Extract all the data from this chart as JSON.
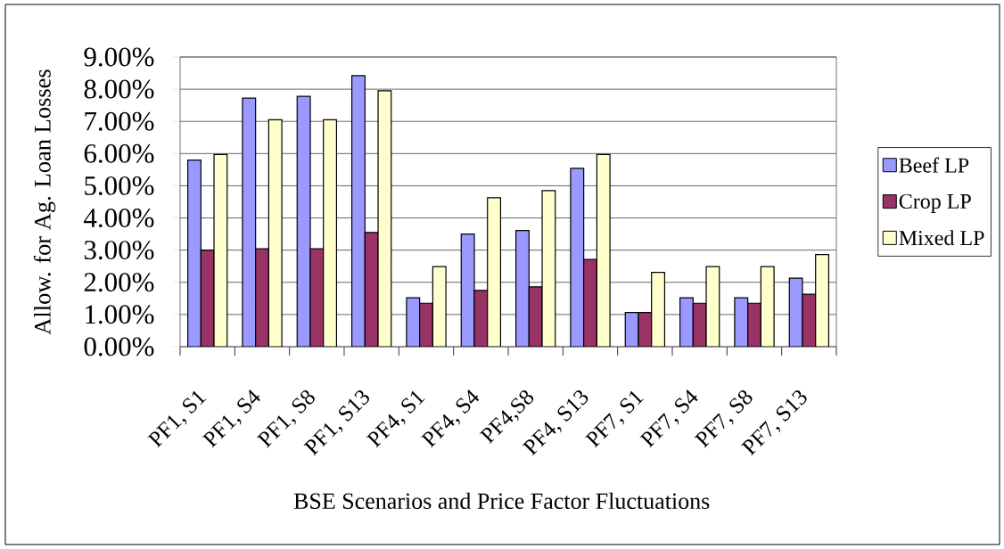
{
  "chart_data": {
    "type": "bar",
    "xlabel": "BSE Scenarios and Price Factor Fluctuations",
    "ylabel": "Allow. for Ag. Loan Losses",
    "categories": [
      "PF1, S1",
      "PF1, S4",
      "PF1, S8",
      "PF1, S13",
      "PF4, S1",
      "PF4, S4",
      "PF4,S8",
      "PF4, S13",
      "PF7, S1",
      "PF7, S4",
      "PF7, S8",
      "PF7, S13"
    ],
    "series": [
      {
        "name": "Beef LP",
        "color": "#9999ff",
        "values": [
          5.8,
          7.72,
          7.78,
          8.42,
          1.52,
          3.5,
          3.61,
          5.54,
          1.06,
          1.52,
          1.52,
          2.13
        ]
      },
      {
        "name": "Crop LP",
        "color": "#993366",
        "values": [
          3.0,
          3.04,
          3.04,
          3.55,
          1.35,
          1.75,
          1.86,
          2.71,
          1.06,
          1.35,
          1.35,
          1.63
        ]
      },
      {
        "name": "Mixed LP",
        "color": "#ffffcc",
        "values": [
          5.97,
          7.05,
          7.05,
          7.95,
          2.49,
          4.63,
          4.85,
          5.97,
          2.31,
          2.49,
          2.49,
          2.86
        ]
      }
    ],
    "ylim": [
      0,
      9
    ],
    "yticks": [
      {
        "value": 0,
        "label": "0.00%"
      },
      {
        "value": 1,
        "label": "1.00%"
      },
      {
        "value": 2,
        "label": "2.00%"
      },
      {
        "value": 3,
        "label": "3.00%"
      },
      {
        "value": 4,
        "label": "4.00%"
      },
      {
        "value": 5,
        "label": "5.00%"
      },
      {
        "value": 6,
        "label": "6.00%"
      },
      {
        "value": 7,
        "label": "7.00%"
      },
      {
        "value": 8,
        "label": "8.00%"
      },
      {
        "value": 9,
        "label": "9.00%"
      }
    ],
    "grid": "y",
    "legend": "right"
  }
}
